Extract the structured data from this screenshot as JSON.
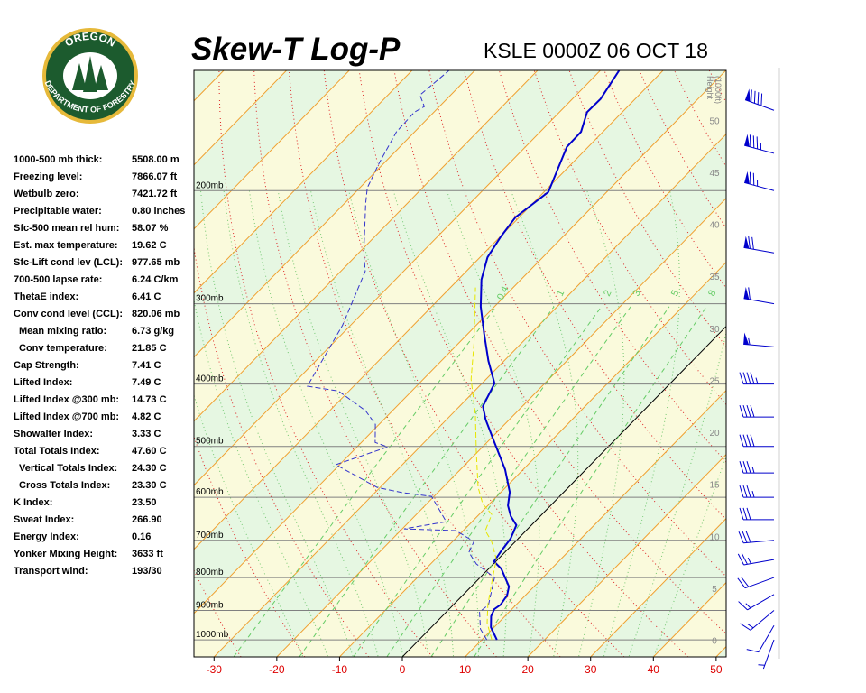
{
  "logo": {
    "top": "OREGON",
    "bottom": "DEPARTMENT OF FORESTRY"
  },
  "indices": {
    "rows": [
      [
        "1000-500 mb thick:",
        "5508.00 m"
      ],
      [
        "Freezing level:",
        "7866.07 ft"
      ],
      [
        "Wetbulb zero:",
        "7421.72 ft"
      ],
      [
        "Precipitable water:",
        "0.80 inches"
      ],
      [
        "Sfc-500 mean rel hum:",
        "58.07 %"
      ],
      [
        "Est. max temperature:",
        "19.62 C"
      ],
      [
        "Sfc-Lift cond lev (LCL):",
        "977.65 mb"
      ],
      [
        "700-500 lapse rate:",
        "6.24 C/km"
      ],
      [
        "ThetaE index:",
        "6.41 C"
      ],
      [
        "Conv cond level (CCL):",
        "820.06 mb"
      ],
      [
        "Mean mixing ratio:",
        "6.73 g/kg"
      ],
      [
        "Conv temperature:",
        "21.85 C"
      ],
      [
        "Cap Strength:",
        "7.41 C"
      ],
      [
        "Lifted Index:",
        "7.49 C"
      ],
      [
        "Lifted Index @300 mb:",
        "14.73 C"
      ],
      [
        "Lifted Index @700 mb:",
        "4.82 C"
      ],
      [
        "Showalter Index:",
        "3.33 C"
      ],
      [
        "Total Totals Index:",
        "47.60 C"
      ],
      [
        "Vertical Totals Index:",
        "24.30 C"
      ],
      [
        "Cross Totals Index:",
        "23.30 C"
      ],
      [
        "K Index:",
        "23.50"
      ],
      [
        "Sweat Index:",
        "266.90"
      ],
      [
        "Energy Index:",
        "0.16"
      ],
      [
        "Yonker Mixing Height:",
        "3633 ft"
      ],
      [
        "Transport wind:",
        "193/30"
      ]
    ]
  },
  "chart_data": {
    "type": "skew-t",
    "title": "Skew-T Log-P",
    "subtitle": "KSLE 0000Z 06 OCT 18",
    "xlim": [
      -33.2,
      51.6
    ],
    "xticks": [
      -30,
      -20,
      -10,
      0,
      10,
      20,
      30,
      40,
      50
    ],
    "ylim": [
      1063,
      130
    ],
    "y_log": true,
    "yticks": [
      {
        "value": 200,
        "label": "200mb"
      },
      {
        "value": 300,
        "label": "300mb"
      },
      {
        "value": 400,
        "label": "400mb"
      },
      {
        "value": 500,
        "label": "500mb"
      },
      {
        "value": 600,
        "label": "600mb"
      },
      {
        "value": 700,
        "label": "700mb"
      },
      {
        "value": 800,
        "label": "800mb"
      },
      {
        "value": 900,
        "label": "900mb"
      },
      {
        "value": 1000,
        "label": "1000mb"
      }
    ],
    "height_axis": {
      "label": [
        "Height",
        "(1000ft)"
      ],
      "lim": [
        -1.6,
        54.8
      ],
      "ticks": [
        0,
        5,
        10,
        15,
        20,
        25,
        30,
        35,
        40,
        45,
        50
      ]
    },
    "mixing_ratio": {
      "values": [
        0.4,
        1,
        2,
        3,
        5,
        8
      ],
      "color": "#66cc66"
    },
    "isotherm_color": "#f0a030",
    "dry_adiabat_color": "#dd2222",
    "moist_adiabat_color": "#55bb55",
    "band_colors": [
      "#fafadc",
      "#e6f7e2"
    ],
    "series": [
      {
        "color": "#0000cc",
        "line_style": "solid",
        "pressure": [
          1000,
          956,
          919,
          896,
          882,
          853,
          826,
          775,
          755,
          726,
          696,
          663,
          642,
          618,
          589,
          543,
          493,
          454,
          433,
          399,
          368,
          334,
          303,
          275,
          254,
          236,
          220,
          201,
          171,
          162,
          151,
          144,
          130
        ],
        "values": [
          12.4,
          9.5,
          7.8,
          7.2,
          7.5,
          7.1,
          6.0,
          2.0,
          -0.3,
          -0.8,
          -1.2,
          -2.4,
          -4.7,
          -6.8,
          -8.6,
          -12.9,
          -18.8,
          -23.8,
          -26.3,
          -28.0,
          -32.5,
          -37.4,
          -42.2,
          -46.3,
          -48.8,
          -49.9,
          -50.6,
          -49.3,
          -53.4,
          -53.5,
          -55.6,
          -55.5,
          -57.0
        ]
      },
      {
        "color": "#3333cc",
        "line_style": "dashed",
        "pressure": [
          1000,
          962,
          905,
          882,
          800,
          762,
          731,
          703,
          676,
          672,
          655,
          598,
          590,
          579,
          534,
          501,
          493,
          462,
          440,
          410,
          403,
          324,
          267,
          250,
          209,
          198,
          181,
          162,
          151,
          148,
          142,
          130
        ],
        "values": [
          10.8,
          8.1,
          5.3,
          5.6,
          2.3,
          -2.7,
          -5.7,
          -6.6,
          -11.2,
          -19.7,
          -14.1,
          -20.4,
          -25.7,
          -30.5,
          -40.6,
          -35.1,
          -37.8,
          -40.6,
          -44.3,
          -51.7,
          -57.4,
          -61.3,
          -66.1,
          -69.2,
          -76.7,
          -78.8,
          -80.8,
          -82.9,
          -83.1,
          -82.4,
          -84.9,
          -84.1
        ]
      },
      {
        "color": "#e6e600",
        "line_style": "dashed",
        "pressure": [
          1000,
          941,
          882,
          800,
          750,
          703,
          676,
          638,
          614,
          579,
          509,
          447,
          393,
          345,
          283
        ],
        "values": [
          11.6,
          8.2,
          5.5,
          2.0,
          -0.2,
          -3.8,
          -6.5,
          -8.0,
          -11.1,
          -14.4,
          -20.3,
          -26.1,
          -32.4,
          -37.6,
          -46.0
        ]
      }
    ],
    "winds": {
      "color": "#0000cc",
      "pressure": [
        1000,
        950,
        900,
        850,
        800,
        750,
        700,
        650,
        600,
        550,
        500,
        450,
        400,
        350,
        300,
        250,
        200,
        175,
        150
      ],
      "direction": [
        200,
        210,
        230,
        240,
        250,
        260,
        265,
        270,
        270,
        270,
        270,
        270,
        270,
        275,
        280,
        280,
        285,
        285,
        290
      ],
      "speed": [
        5,
        10,
        15,
        15,
        20,
        25,
        30,
        30,
        35,
        35,
        40,
        40,
        45,
        55,
        60,
        70,
        75,
        85,
        90
      ]
    }
  }
}
